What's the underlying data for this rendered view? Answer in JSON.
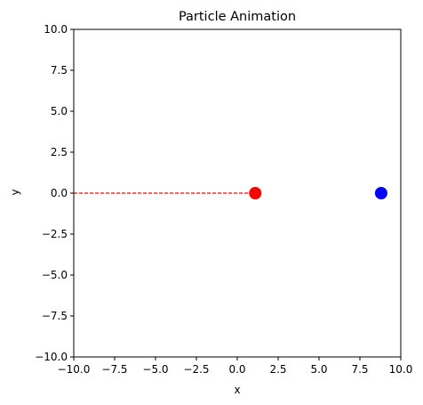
{
  "chart_data": {
    "type": "scatter",
    "title": "Particle Animation",
    "xlabel": "x",
    "ylabel": "y",
    "xlim": [
      -10,
      10
    ],
    "ylim": [
      -10,
      10
    ],
    "xticks": [
      -10,
      -7.5,
      -5,
      -2.5,
      0,
      2.5,
      5,
      7.5,
      10
    ],
    "yticks": [
      -10,
      -7.5,
      -5,
      -2.5,
      0,
      2.5,
      5,
      7.5,
      10
    ],
    "xtick_labels": [
      "−10.0",
      "−7.5",
      "−5.0",
      "−2.5",
      "0.0",
      "2.5",
      "5.0",
      "7.5",
      "10.0"
    ],
    "ytick_labels": [
      "−10.0",
      "−7.5",
      "−5.0",
      "−2.5",
      "0.0",
      "2.5",
      "5.0",
      "7.5",
      "10.0"
    ],
    "grid": false,
    "series": [
      {
        "marker_color": "#ff0000",
        "points": [
          {
            "x": 1.1,
            "y": 0.0
          }
        ],
        "trail": {
          "x": [
            -10,
            1.1
          ],
          "y": [
            0,
            0
          ],
          "color": "#ff0000",
          "style": "dashed"
        }
      },
      {
        "marker_color": "#0000ff",
        "points": [
          {
            "x": 8.8,
            "y": 0.0
          }
        ]
      }
    ]
  }
}
